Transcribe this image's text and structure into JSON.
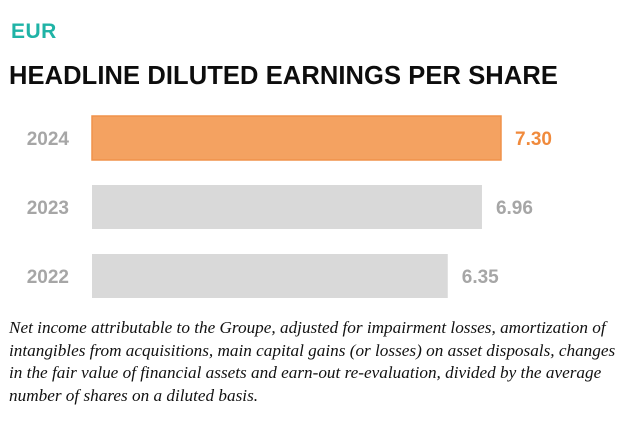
{
  "header": {
    "currency": "EUR",
    "title": "HEADLINE DILUTED EARNINGS PER SHARE"
  },
  "chart_data": {
    "type": "bar",
    "orientation": "horizontal",
    "categories": [
      "2024",
      "2023",
      "2022"
    ],
    "values": [
      7.3,
      6.96,
      6.35
    ],
    "value_labels": [
      "7.30",
      "6.96",
      "6.35"
    ],
    "title": "HEADLINE DILUTED EARNINGS PER SHARE",
    "xlabel": "",
    "ylabel": "",
    "grid": false,
    "legend": "none"
  },
  "colors": {
    "accent": "#1fb3a6",
    "highlight_bar": "#f4a261",
    "highlight_border": "#f0924a",
    "highlight_label": "#f08a3c",
    "muted_bar": "#d9d9d9",
    "muted_label": "#a6a6a6"
  },
  "footnote": "Net income attributable to the Groupe, adjusted for impairment losses, amortization of intangibles from acquisitions, main capital gains (or losses) on asset disposals, changes in the fair value of financial assets and earn-out re-evaluation, divided by the average number of shares on a diluted basis."
}
